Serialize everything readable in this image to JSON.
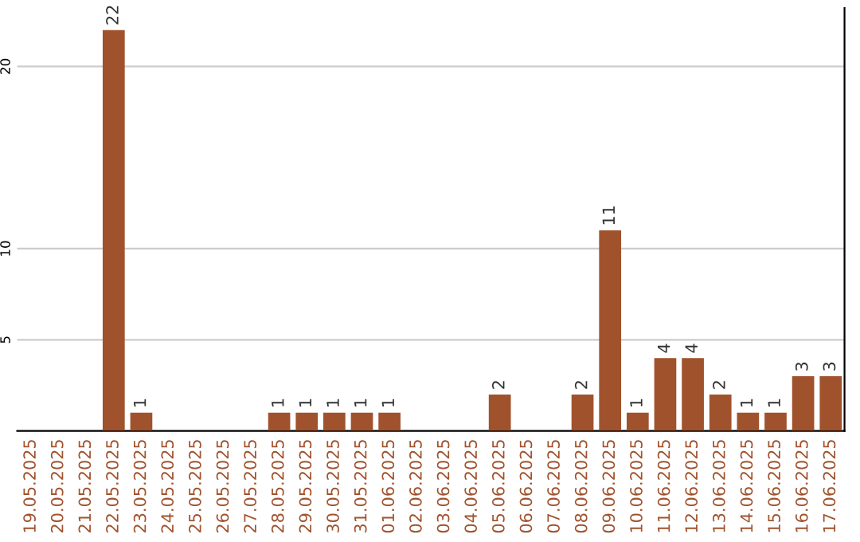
{
  "chart_data": {
    "type": "bar",
    "categories": [
      "19.05.2025",
      "20.05.2025",
      "21.05.2025",
      "22.05.2025",
      "23.05.2025",
      "24.05.2025",
      "25.05.2025",
      "26.05.2025",
      "27.05.2025",
      "28.05.2025",
      "29.05.2025",
      "30.05.2025",
      "31.05.2025",
      "01.06.2025",
      "02.06.2025",
      "03.06.2025",
      "04.06.2025",
      "05.06.2025",
      "06.06.2025",
      "07.06.2025",
      "08.06.2025",
      "09.06.2025",
      "10.06.2025",
      "11.06.2025",
      "12.06.2025",
      "13.06.2025",
      "14.06.2025",
      "15.06.2025",
      "16.06.2025",
      "17.06.2025"
    ],
    "values": [
      0,
      0,
      0,
      22,
      1,
      0,
      0,
      0,
      0,
      1,
      1,
      1,
      1,
      1,
      0,
      0,
      0,
      2,
      0,
      0,
      2,
      11,
      1,
      4,
      4,
      2,
      1,
      1,
      3,
      3
    ],
    "value_labels": [
      null,
      null,
      null,
      "22",
      "1",
      null,
      null,
      null,
      null,
      "1",
      "1",
      "1",
      "1",
      "1",
      null,
      null,
      null,
      "2",
      null,
      null,
      "2",
      "11",
      "1",
      "4",
      "4",
      "2",
      "1",
      "1",
      "3",
      "3"
    ],
    "color": "#a0522d",
    "ylim": [
      0,
      23.2
    ],
    "yticks": [
      5,
      10,
      20
    ],
    "grid": "y"
  }
}
